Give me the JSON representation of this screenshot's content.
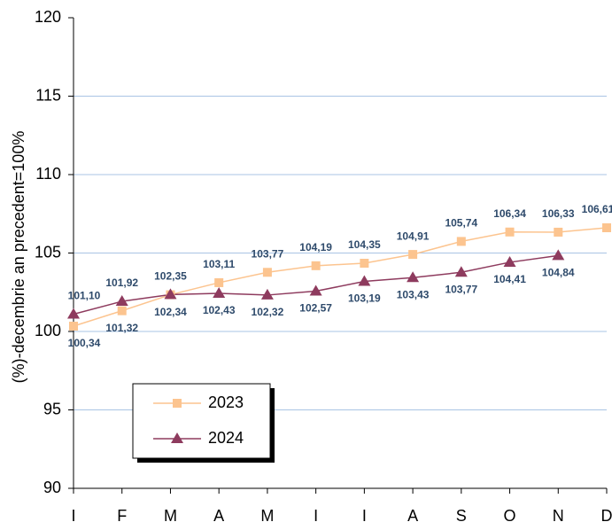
{
  "chart_data": {
    "type": "line",
    "y_label": "(%)-decembrie an precedent=100%",
    "categories": [
      "I",
      "F",
      "M",
      "A",
      "M",
      "I",
      "I",
      "A",
      "S",
      "O",
      "N",
      "D"
    ],
    "series": [
      {
        "name": "2023",
        "color": "#fcc48f",
        "marker": "square",
        "values": [
          100.34,
          101.32,
          102.34,
          103.11,
          103.77,
          104.19,
          104.35,
          104.91,
          105.74,
          106.34,
          106.33,
          106.61
        ],
        "value_labels": [
          "100,34",
          "101,32",
          "102,34",
          "103,11",
          "103,77",
          "104,19",
          "104,35",
          "104,91",
          "105,74",
          "106,34",
          "106,33",
          "106,61"
        ]
      },
      {
        "name": "2024",
        "color": "#8e3b5e",
        "marker": "triangle",
        "values": [
          101.1,
          101.92,
          102.35,
          102.43,
          102.32,
          102.57,
          103.19,
          103.43,
          103.77,
          104.41,
          104.84,
          null
        ],
        "value_labels": [
          "101,10",
          "101,92",
          "102,35",
          "102,43",
          "102,32",
          "102,57",
          "103,19",
          "103,43",
          "103,77",
          "104,41",
          "104,84",
          null
        ]
      }
    ],
    "ylim": [
      90,
      120
    ],
    "yticks": [
      90,
      95,
      100,
      105,
      110,
      115,
      120
    ],
    "grid": true
  }
}
